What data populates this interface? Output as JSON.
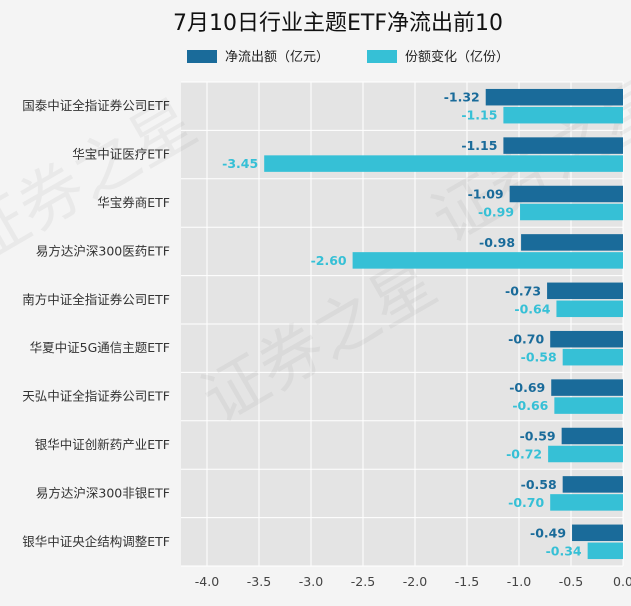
{
  "chart_data": {
    "type": "bar",
    "orientation": "horizontal",
    "title": "7月10日行业主题ETF净流出前10",
    "categories": [
      "国泰中证全指证券公司ETF",
      "华宝中证医疗ETF",
      "华宝券商ETF",
      "易方达沪深300医药ETF",
      "南方中证全指证券公司ETF",
      "华夏中证5G通信主题ETF",
      "天弘中证全指证券公司ETF",
      "银华中证创新药产业ETF",
      "易方达沪深300非银ETF",
      "银华中证央企结构调整ETF"
    ],
    "series": [
      {
        "name": "净流出额（亿元）",
        "color": "#1a6b9a",
        "values": [
          -1.32,
          -1.15,
          -1.09,
          -0.98,
          -0.73,
          -0.7,
          -0.69,
          -0.59,
          -0.58,
          -0.49
        ],
        "labels": [
          "-1.32",
          "-1.15",
          "-1.09",
          "-0.98",
          "-0.73",
          "-0.70",
          "-0.69",
          "-0.59",
          "-0.58",
          "-0.49"
        ]
      },
      {
        "name": "份额变化（亿份）",
        "color": "#36c0d6",
        "values": [
          -1.15,
          -3.45,
          -0.99,
          -2.6,
          -0.64,
          -0.58,
          -0.66,
          -0.72,
          -0.7,
          -0.34
        ],
        "labels": [
          "-1.15",
          "-3.45",
          "-0.99",
          "-2.60",
          "-0.64",
          "-0.58",
          "-0.66",
          "-0.72",
          "-0.70",
          "-0.34"
        ]
      }
    ],
    "xlim": [
      -4.25,
      0
    ],
    "xticks": [
      -4.0,
      -3.5,
      -3.0,
      -2.5,
      -2.0,
      -1.5,
      -1.0,
      -0.5,
      0.0
    ],
    "xtick_labels": [
      "-4.0",
      "-3.5",
      "-3.0",
      "-2.5",
      "-2.0",
      "-1.5",
      "-1.0",
      "-0.5",
      "0.0"
    ],
    "grid": true,
    "legend_position": "top-center",
    "background_color": "#e4e4e4",
    "watermark": "证券之星"
  }
}
